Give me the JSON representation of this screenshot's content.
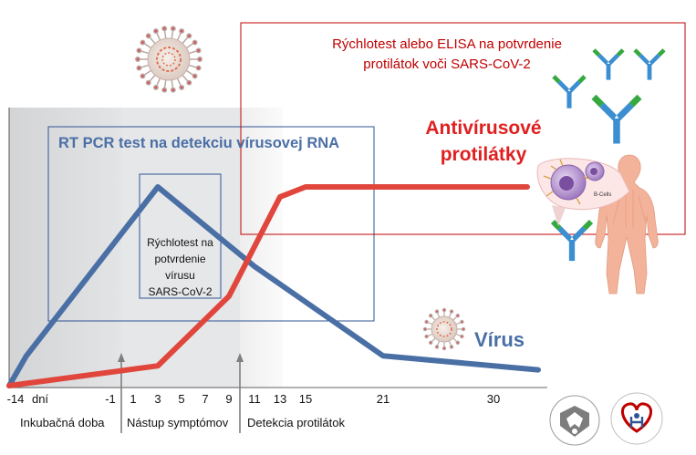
{
  "boxes": {
    "rt_pcr": "RT PCR test na detekciu vírusovej RNA",
    "rapid_virus": [
      "Rýchlotest na",
      "potvrdenie",
      "vírusu",
      "SARS-CoV-2"
    ],
    "elisa": [
      "Rýchlotest alebo ELISA na potvrdenie",
      "protilátok voči SARS-CoV-2"
    ]
  },
  "labels": {
    "antibodies": [
      "Antivírusové",
      "protilátky"
    ],
    "virus": "Vírus",
    "bcells": "B-Cells"
  },
  "axis": {
    "ticks": [
      "-14",
      "dní",
      "-1",
      "1",
      "3",
      "5",
      "7",
      "9",
      "11",
      "13",
      "15",
      "21",
      "30"
    ]
  },
  "phases": [
    "Inkubačná doba",
    "Nástup symptómov",
    "Detekcia protilátok"
  ],
  "colors": {
    "virus_line": "#4a6fa5",
    "antibody_line": "#e0463c",
    "box_blue": "#2f5496",
    "box_red": "#c00000",
    "antibody_green": "#35a83f",
    "antibody_blue": "#3b8fd1",
    "skin": "#f3b39a"
  },
  "chart_data": {
    "type": "line",
    "x_ticks": [
      -14,
      -1,
      1,
      3,
      5,
      7,
      9,
      11,
      13,
      15,
      21,
      30
    ],
    "series": [
      {
        "points": [
          [
            -14,
            0
          ],
          [
            -12,
            15
          ],
          [
            3,
            100
          ],
          [
            11,
            60
          ],
          [
            21,
            15
          ],
          [
            30,
            8
          ]
        ]
      },
      {
        "points": [
          [
            -14,
            0
          ],
          [
            3,
            10
          ],
          [
            9,
            45
          ],
          [
            13,
            95
          ],
          [
            15,
            100
          ],
          [
            30,
            100
          ]
        ]
      }
    ]
  }
}
